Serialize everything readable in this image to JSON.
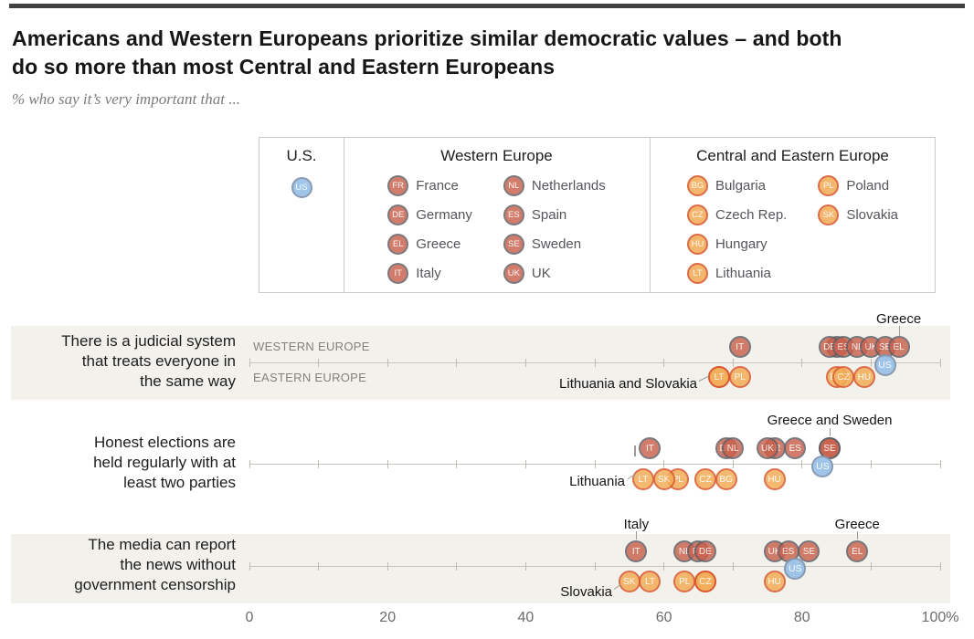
{
  "header": {
    "title_lines": [
      "Americans and Western Europeans prioritize similar democratic values – and both",
      "do so more than most Central and Eastern Europeans"
    ],
    "subtitle": "% who say it’s very important that ..."
  },
  "legend": {
    "us": {
      "header": "U.S.",
      "code": "US"
    },
    "western_europe": {
      "header": "Western Europe",
      "items": [
        {
          "code": "FR",
          "label": "France"
        },
        {
          "code": "DE",
          "label": "Germany"
        },
        {
          "code": "EL",
          "label": "Greece"
        },
        {
          "code": "IT",
          "label": "Italy"
        },
        {
          "code": "NL",
          "label": "Netherlands"
        },
        {
          "code": "ES",
          "label": "Spain"
        },
        {
          "code": "SE",
          "label": "Sweden"
        },
        {
          "code": "UK",
          "label": "UK"
        }
      ]
    },
    "central_eastern_europe": {
      "header": "Central and Eastern Europe",
      "items": [
        {
          "code": "BG",
          "label": "Bulgaria"
        },
        {
          "code": "CZ",
          "label": "Czech Rep."
        },
        {
          "code": "HU",
          "label": "Hungary"
        },
        {
          "code": "LT",
          "label": "Lithuania"
        },
        {
          "code": "PL",
          "label": "Poland"
        },
        {
          "code": "SK",
          "label": "Slovakia"
        }
      ]
    }
  },
  "chart_data": {
    "type": "scatter",
    "unit": "% who say very important",
    "axis": {
      "min": 0,
      "max": 100,
      "tick_values": [
        0,
        20,
        40,
        60,
        80,
        100
      ],
      "tick_labels": [
        "0",
        "20",
        "40",
        "60",
        "80",
        "100%"
      ]
    },
    "lane_labels": [
      "WESTERN EUROPE",
      "EASTERN EUROPE"
    ],
    "rows": [
      {
        "statement_lines": [
          "There is a judicial system",
          "that treats everyone in",
          "the same way"
        ],
        "western_europe": [
          {
            "code": "IT",
            "value": 71
          },
          {
            "code": "FR",
            "value": 85
          },
          {
            "code": "DE",
            "value": 84
          },
          {
            "code": "ES",
            "value": 86
          },
          {
            "code": "NL",
            "value": 88
          },
          {
            "code": "UK",
            "value": 90
          },
          {
            "code": "SE",
            "value": 92
          },
          {
            "code": "EL",
            "value": 94
          }
        ],
        "eastern_europe": [
          {
            "code": "SK",
            "value": 68
          },
          {
            "code": "LT",
            "value": 68
          },
          {
            "code": "PL",
            "value": 71
          },
          {
            "code": "BG",
            "value": 85
          },
          {
            "code": "CZ",
            "value": 86
          },
          {
            "code": "HU",
            "value": 89
          }
        ],
        "us_value": 92,
        "annotations": [
          {
            "text": "Greece"
          },
          {
            "text": "Lithuania and Slovakia"
          }
        ]
      },
      {
        "statement_lines": [
          "Honest elections are",
          "held regularly with at",
          "least two parties"
        ],
        "western_europe": [
          {
            "code": "IT",
            "value": 58
          },
          {
            "code": "DE",
            "value": 69
          },
          {
            "code": "NL",
            "value": 70
          },
          {
            "code": "FR",
            "value": 76
          },
          {
            "code": "UK",
            "value": 75
          },
          {
            "code": "ES",
            "value": 79
          },
          {
            "code": "EL",
            "value": 84
          },
          {
            "code": "SE",
            "value": 84
          }
        ],
        "eastern_europe": [
          {
            "code": "LT",
            "value": 57
          },
          {
            "code": "PL",
            "value": 62
          },
          {
            "code": "SK",
            "value": 60
          },
          {
            "code": "CZ",
            "value": 66
          },
          {
            "code": "BG",
            "value": 69
          },
          {
            "code": "HU",
            "value": 76
          }
        ],
        "us_value": 83,
        "annotations": [
          {
            "text": "Greece and Sweden"
          },
          {
            "text": "Lithuania"
          }
        ]
      },
      {
        "statement_lines": [
          "The media can report",
          "the news without",
          "government censorship"
        ],
        "western_europe": [
          {
            "code": "IT",
            "value": 56
          },
          {
            "code": "NL",
            "value": 63
          },
          {
            "code": "FR",
            "value": 65
          },
          {
            "code": "DE",
            "value": 66
          },
          {
            "code": "UK",
            "value": 76
          },
          {
            "code": "ES",
            "value": 78
          },
          {
            "code": "SE",
            "value": 81
          },
          {
            "code": "EL",
            "value": 88
          }
        ],
        "eastern_europe": [
          {
            "code": "SK",
            "value": 55
          },
          {
            "code": "LT",
            "value": 58
          },
          {
            "code": "PL",
            "value": 63
          },
          {
            "code": "BG",
            "value": 66
          },
          {
            "code": "CZ",
            "value": 66
          },
          {
            "code": "HU",
            "value": 76
          }
        ],
        "us_value": 79,
        "annotations": [
          {
            "text": "Italy"
          },
          {
            "text": "Greece"
          },
          {
            "text": "Slovakia"
          }
        ]
      }
    ]
  },
  "colors": {
    "we_fill": "#c9604c",
    "we_border": "#5c5c64",
    "ee_fill": "#f3ad58",
    "ee_border": "#d9572e",
    "us_fill": "#9ac2e8",
    "us_border": "#8495ad",
    "band": "#f2f1ec",
    "axis": "#c6c4bd"
  }
}
